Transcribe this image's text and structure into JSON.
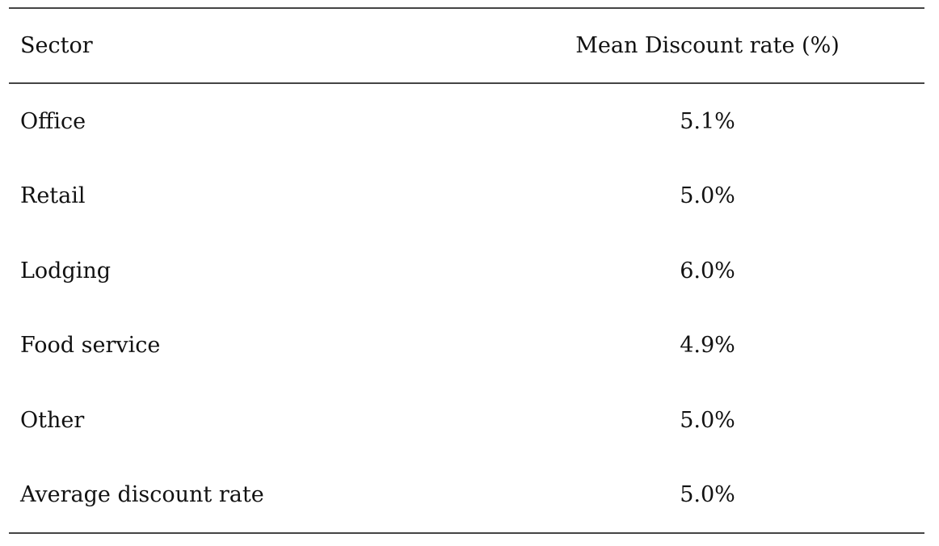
{
  "table": {
    "headers": {
      "sector": "Sector",
      "rate": "Mean Discount rate (%)"
    },
    "rows": [
      {
        "sector": "Office",
        "rate": "5.1%"
      },
      {
        "sector": "Retail",
        "rate": "5.0%"
      },
      {
        "sector": "Lodging",
        "rate": "6.0%"
      },
      {
        "sector": "Food service",
        "rate": "4.9%"
      },
      {
        "sector": "Other",
        "rate": "5.0%"
      },
      {
        "sector": "Average discount rate",
        "rate": "5.0%"
      }
    ]
  }
}
